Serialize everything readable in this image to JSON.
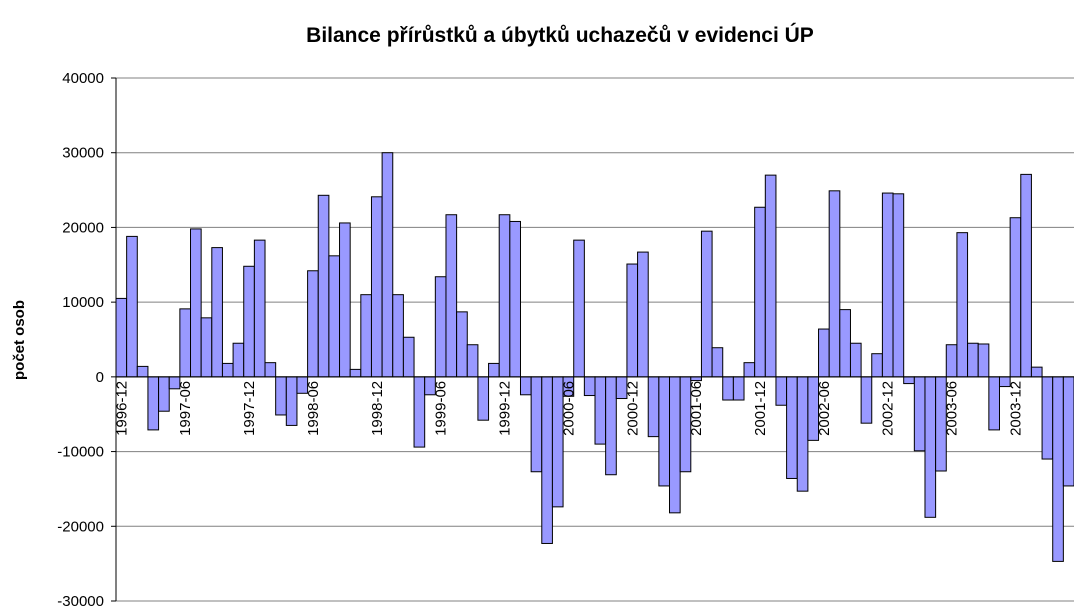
{
  "chart_data": {
    "type": "bar",
    "title": "Bilance přírůstků a úbytků uchazečů v evidenci ÚP",
    "y_label": "počet osob",
    "categories": [
      "1996-12",
      null,
      null,
      null,
      null,
      null,
      "1997-06",
      null,
      null,
      null,
      null,
      null,
      "1997-12",
      null,
      null,
      null,
      null,
      null,
      "1998-06",
      null,
      null,
      null,
      null,
      null,
      "1998-12",
      null,
      null,
      null,
      null,
      null,
      "1999-06",
      null,
      null,
      null,
      null,
      null,
      "1999-12",
      null,
      null,
      null,
      null,
      null,
      "2000-06",
      null,
      null,
      null,
      null,
      null,
      "2000-12",
      null,
      null,
      null,
      null,
      null,
      "2001-06",
      null,
      null,
      null,
      null,
      null,
      "2001-12",
      null,
      null,
      null,
      null,
      null,
      "2002-06",
      null,
      null,
      null,
      null,
      null,
      "2002-12",
      null,
      null,
      null,
      null,
      null,
      "2003-06",
      null,
      null,
      null,
      null,
      null,
      "2003-12",
      null,
      null,
      null,
      null,
      null
    ],
    "values": [
      10500,
      18800,
      1400,
      -7100,
      -4600,
      -1600,
      9100,
      19800,
      7900,
      17300,
      1800,
      4500,
      14800,
      18300,
      1900,
      -5100,
      -6500,
      -2200,
      14200,
      24300,
      16200,
      20600,
      1000,
      11000,
      24100,
      30000,
      11000,
      5300,
      -9400,
      -2400,
      13400,
      21700,
      8700,
      4300,
      -5800,
      1800,
      21700,
      20800,
      -2400,
      -12700,
      -22300,
      -17400,
      -2600,
      18300,
      -2500,
      -9000,
      -13100,
      -2900,
      15100,
      16700,
      -8000,
      -14600,
      -18200,
      -12700,
      -500,
      19500,
      3900,
      -3100,
      -3100,
      1900,
      22700,
      27000,
      -3800,
      -13600,
      -15300,
      -8500,
      6400,
      24900,
      9000,
      4500,
      -6200,
      3100,
      24600,
      24500,
      -900,
      -9900,
      -18800,
      -12600,
      4300,
      19300,
      4500,
      4400,
      -7100,
      -1300,
      21300,
      27100,
      1300,
      -11000,
      -24700,
      -14600
    ],
    "color": "#9999ff",
    "ylim": [
      -30000,
      40000
    ],
    "yticks": [
      -30000,
      -20000,
      -10000,
      0,
      10000,
      20000,
      30000,
      40000
    ],
    "grid": true
  }
}
